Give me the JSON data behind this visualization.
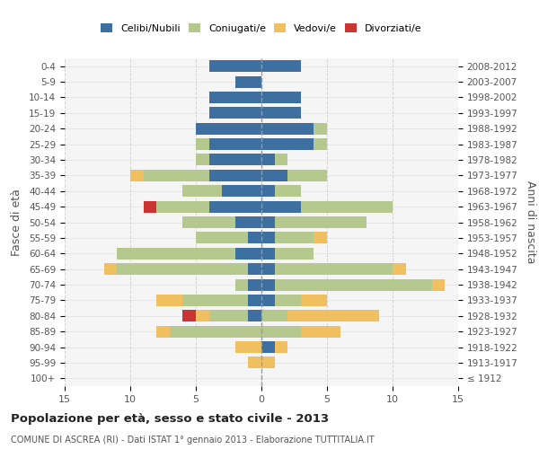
{
  "age_groups": [
    "100+",
    "95-99",
    "90-94",
    "85-89",
    "80-84",
    "75-79",
    "70-74",
    "65-69",
    "60-64",
    "55-59",
    "50-54",
    "45-49",
    "40-44",
    "35-39",
    "30-34",
    "25-29",
    "20-24",
    "15-19",
    "10-14",
    "5-9",
    "0-4"
  ],
  "birth_years": [
    "≤ 1912",
    "1913-1917",
    "1918-1922",
    "1923-1927",
    "1928-1932",
    "1933-1937",
    "1938-1942",
    "1943-1947",
    "1948-1952",
    "1953-1957",
    "1958-1962",
    "1963-1967",
    "1968-1972",
    "1973-1977",
    "1978-1982",
    "1983-1987",
    "1988-1992",
    "1993-1997",
    "1998-2002",
    "2003-2007",
    "2008-2012"
  ],
  "male_celibe": [
    0,
    0,
    0,
    0,
    1,
    1,
    1,
    1,
    2,
    1,
    2,
    4,
    3,
    4,
    4,
    4,
    5,
    4,
    4,
    2,
    4
  ],
  "male_coniugato": [
    0,
    0,
    0,
    7,
    3,
    5,
    1,
    10,
    9,
    4,
    4,
    4,
    3,
    5,
    1,
    1,
    0,
    0,
    0,
    0,
    0
  ],
  "male_vedovo": [
    0,
    1,
    2,
    1,
    1,
    2,
    0,
    1,
    0,
    0,
    0,
    0,
    0,
    1,
    0,
    0,
    0,
    0,
    0,
    0,
    0
  ],
  "male_divorziato": [
    0,
    0,
    0,
    0,
    1,
    0,
    0,
    0,
    0,
    0,
    0,
    1,
    0,
    0,
    0,
    0,
    0,
    0,
    0,
    0,
    0
  ],
  "female_celibe": [
    0,
    0,
    1,
    0,
    0,
    1,
    1,
    1,
    1,
    1,
    1,
    3,
    1,
    2,
    1,
    4,
    4,
    3,
    3,
    0,
    3
  ],
  "female_coniugato": [
    0,
    0,
    0,
    3,
    2,
    2,
    12,
    9,
    3,
    3,
    7,
    7,
    2,
    3,
    1,
    1,
    1,
    0,
    0,
    0,
    0
  ],
  "female_vedovo": [
    0,
    1,
    1,
    3,
    7,
    2,
    1,
    1,
    0,
    1,
    0,
    0,
    0,
    0,
    0,
    0,
    0,
    0,
    0,
    0,
    0
  ],
  "female_divorziato": [
    0,
    0,
    0,
    0,
    0,
    0,
    0,
    0,
    0,
    0,
    0,
    0,
    0,
    0,
    0,
    0,
    0,
    0,
    0,
    0,
    0
  ],
  "color_celibe": "#3d6fa0",
  "color_coniugato": "#b5c98e",
  "color_vedovo": "#f0c060",
  "color_divorziato": "#cc3333",
  "title_main": "Popolazione per età, sesso e stato civile - 2013",
  "title_sub": "COMUNE DI ASCREA (RI) - Dati ISTAT 1° gennaio 2013 - Elaborazione TUTTITALIA.IT",
  "ylabel_left": "Fasce di età",
  "ylabel_right": "Anni di nascita",
  "xlim": 15,
  "background_color": "#ffffff",
  "grid_color": "#cccccc"
}
